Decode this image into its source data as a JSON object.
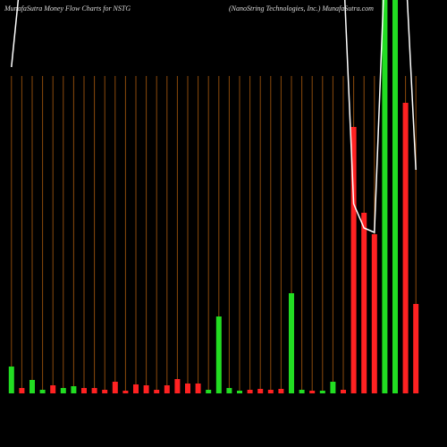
{
  "chart_data": {
    "type": "bar",
    "title": "MunafaSutra  Money Flow  Charts for NSTG",
    "subtitle": "(NanoString Technologies, Inc.) MunafaSutra.com",
    "categories": [
      null,
      null,
      null,
      null,
      null,
      null,
      null,
      null,
      null,
      null,
      null,
      null,
      null,
      null,
      null,
      null,
      null,
      null,
      null,
      null,
      null,
      null,
      null,
      null,
      null,
      null,
      null,
      null,
      null,
      null,
      null,
      null,
      null,
      null,
      null,
      null,
      null,
      null,
      null,
      null
    ],
    "values": [
      30,
      6,
      15,
      4,
      9,
      6,
      8,
      6,
      6,
      4,
      13,
      3,
      10,
      9,
      4,
      9,
      16,
      11,
      11,
      4,
      86,
      6,
      3,
      4,
      5,
      4,
      5,
      112,
      4,
      3,
      3,
      13,
      4,
      298,
      202,
      178,
      440,
      440,
      325,
      100
    ],
    "colors": [
      "#22dd22",
      "#ff2222",
      "#22dd22",
      "#22dd22",
      "#ff2222",
      "#22dd22",
      "#22dd22",
      "#ff2222",
      "#ff2222",
      "#ff2222",
      "#ff2222",
      "#ff2222",
      "#ff2222",
      "#ff2222",
      "#ff2222",
      "#ff2222",
      "#ff2222",
      "#ff2222",
      "#ff2222",
      "#22dd22",
      "#22dd22",
      "#22dd22",
      "#22dd22",
      "#ff2222",
      "#ff2222",
      "#ff2222",
      "#ff2222",
      "#22dd22",
      "#22dd22",
      "#ff2222",
      "#22dd22",
      "#22dd22",
      "#ff2222",
      "#ff2222",
      "#ff2222",
      "#ff2222",
      "#22dd22",
      "#22dd22",
      "#ff2222",
      "#ff2222"
    ],
    "line": {
      "color": "#ffffff",
      "values": [
        365,
        480,
        null,
        null,
        null,
        null,
        null,
        null,
        null,
        null,
        null,
        null,
        null,
        null,
        null,
        null,
        null,
        null,
        null,
        null,
        null,
        null,
        null,
        null,
        null,
        null,
        null,
        null,
        null,
        null,
        null,
        null,
        480,
        212,
        185,
        180,
        480,
        480,
        480,
        250
      ]
    },
    "grid": true,
    "grid_color": "#8b4a0c"
  }
}
